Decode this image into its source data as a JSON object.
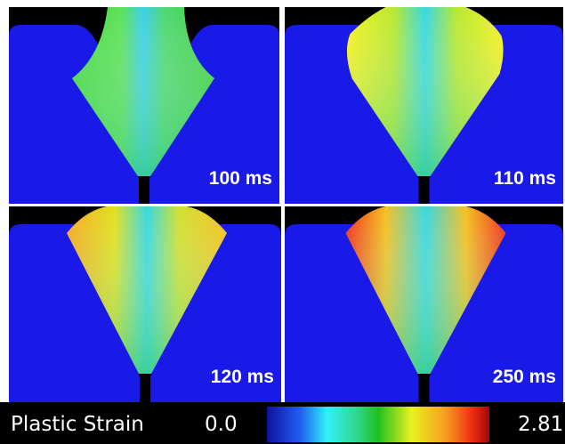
{
  "panels": [
    {
      "label": "100 ms"
    },
    {
      "label": "110 ms"
    },
    {
      "label": "120 ms"
    },
    {
      "label": "250 ms"
    }
  ],
  "colorbar": {
    "title": "Plastic Strain",
    "min_label": "0.0",
    "max_label": "2.81"
  }
}
